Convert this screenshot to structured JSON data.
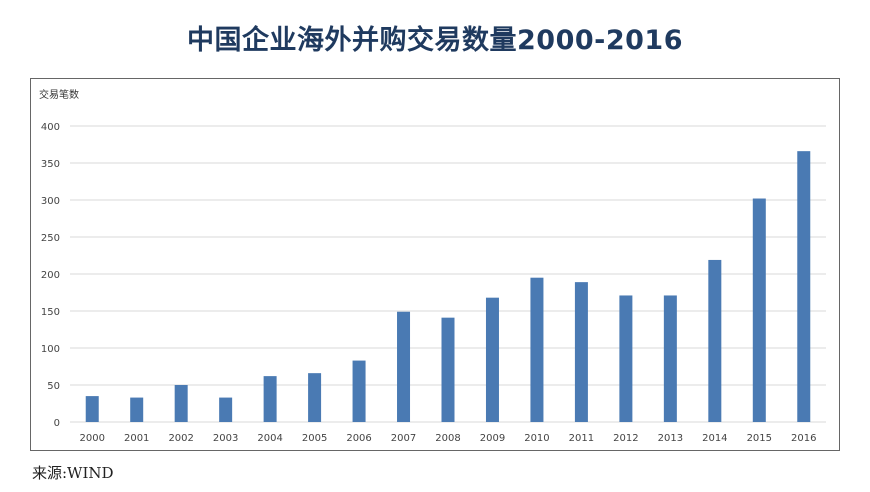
{
  "title": "中国企业海外并购交易数量2000-2016",
  "source": "来源:WIND",
  "colors": {
    "bar": "#4a7ab3",
    "grid": "#d9d9d9",
    "title": "#1f3a5f"
  },
  "chart_data": {
    "type": "bar",
    "title": "中国企业海外并购交易数量2000-2016",
    "ylabel": "交易笔数",
    "xlabel": "",
    "ylim": [
      0,
      400
    ],
    "yticks": [
      0,
      50,
      100,
      150,
      200,
      250,
      300,
      350,
      400
    ],
    "grid": true,
    "categories": [
      "2000",
      "2001",
      "2002",
      "2003",
      "2004",
      "2005",
      "2006",
      "2007",
      "2008",
      "2009",
      "2010",
      "2011",
      "2012",
      "2013",
      "2014",
      "2015",
      "2016"
    ],
    "values": [
      35,
      33,
      50,
      33,
      62,
      66,
      83,
      149,
      141,
      168,
      195,
      189,
      171,
      171,
      219,
      302,
      366
    ]
  }
}
